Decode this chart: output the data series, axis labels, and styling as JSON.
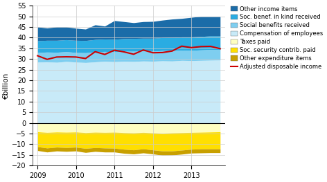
{
  "ylabel": "€billion",
  "ylim": [
    -20,
    55
  ],
  "yticks": [
    -20,
    -15,
    -10,
    -5,
    0,
    5,
    10,
    15,
    20,
    25,
    30,
    35,
    40,
    45,
    50,
    55
  ],
  "num_points": 20,
  "colors": {
    "other_income": "#1b6ca8",
    "soc_benef_kind": "#2aace2",
    "social_benefits": "#7ecef0",
    "compensation": "#c8eaf8",
    "taxes": "#fefec0",
    "soc_security": "#ffdf00",
    "other_expenditure": "#c8a000",
    "line_color": "#cc0000"
  },
  "compensation_of_employees": [
    28.5,
    28.6,
    28.4,
    28.8,
    28.5,
    28.3,
    28.6,
    28.9,
    28.7,
    28.9,
    28.8,
    29.0,
    28.9,
    29.1,
    29.0,
    29.3,
    29.2,
    29.3,
    29.4,
    29.5
  ],
  "social_benefits": [
    4.5,
    4.6,
    4.7,
    4.6,
    4.5,
    4.6,
    4.7,
    4.6,
    4.6,
    4.7,
    4.8,
    4.7,
    4.7,
    4.8,
    4.9,
    4.8,
    4.8,
    4.9,
    5.0,
    4.9
  ],
  "soc_benef_kind": [
    5.5,
    5.5,
    5.6,
    5.6,
    5.7,
    5.7,
    5.8,
    5.8,
    5.9,
    5.9,
    6.0,
    6.0,
    6.1,
    6.1,
    6.2,
    6.2,
    6.3,
    6.3,
    6.4,
    6.4
  ],
  "other_income": [
    6.5,
    5.8,
    6.3,
    6.0,
    5.7,
    5.4,
    6.9,
    6.1,
    8.8,
    8.0,
    7.4,
    7.8,
    7.9,
    8.2,
    8.6,
    8.7,
    9.2,
    9.5,
    9.2,
    9.2
  ],
  "taxes": [
    -4.2,
    -4.5,
    -4.3,
    -4.4,
    -4.3,
    -4.6,
    -4.4,
    -4.5,
    -4.4,
    -4.6,
    -4.7,
    -4.5,
    -4.7,
    -4.9,
    -4.7,
    -4.6,
    -4.5,
    -4.4,
    -4.3,
    -4.2
  ],
  "soc_security": [
    -7.0,
    -7.3,
    -7.1,
    -7.2,
    -7.1,
    -7.4,
    -7.2,
    -7.3,
    -7.5,
    -7.8,
    -8.0,
    -7.7,
    -8.0,
    -8.3,
    -8.5,
    -8.2,
    -7.9,
    -7.8,
    -7.9,
    -8.0
  ],
  "other_expenditure": [
    -1.8,
    -1.9,
    -1.8,
    -1.8,
    -1.8,
    -1.9,
    -1.8,
    -1.9,
    -1.8,
    -1.9,
    -1.9,
    -1.9,
    -1.9,
    -2.0,
    -1.9,
    -1.9,
    -1.8,
    -1.9,
    -1.8,
    -1.8
  ],
  "adjusted_disposable_income": [
    31.5,
    29.8,
    30.9,
    31.0,
    30.9,
    30.2,
    33.4,
    32.1,
    34.1,
    33.3,
    32.2,
    34.2,
    32.9,
    33.0,
    33.7,
    36.0,
    35.3,
    35.8,
    35.9,
    34.8
  ]
}
